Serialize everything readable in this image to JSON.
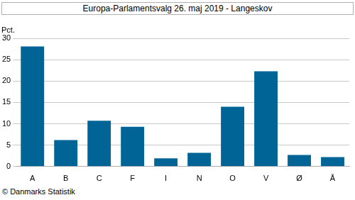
{
  "chart_data": {
    "type": "bar",
    "title": "Europa-Parlamentsvalg 26. maj 2019 - Langeskov",
    "ylabel": "Pct.",
    "source": "© Danmarks Statistik",
    "categories": [
      "A",
      "B",
      "C",
      "F",
      "I",
      "N",
      "O",
      "V",
      "Ø",
      "Å"
    ],
    "values": [
      28.1,
      6.2,
      10.7,
      9.3,
      1.9,
      3.2,
      14.0,
      22.3,
      2.7,
      2.2
    ],
    "color": "#006496",
    "ylim": [
      0,
      30
    ],
    "yticks": [
      0,
      5,
      10,
      15,
      20,
      25,
      30
    ],
    "grid": true
  }
}
